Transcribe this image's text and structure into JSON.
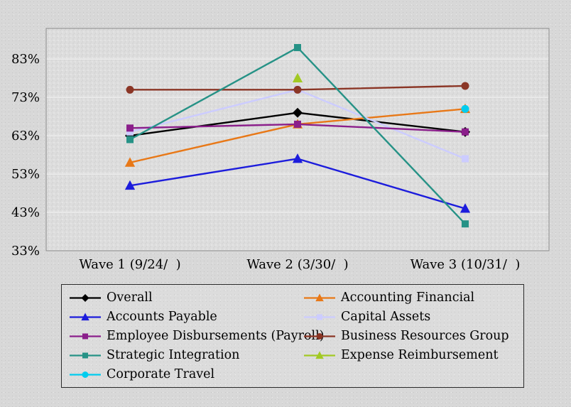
{
  "chart_data": {
    "type": "line",
    "title": "",
    "xlabel": "",
    "ylabel": "",
    "categories": [
      "Wave 1 (9/24/  )",
      "Wave 2 (3/30/  )",
      "Wave 3 (10/31/  )"
    ],
    "yticks": [
      83,
      73,
      63,
      53,
      43,
      33
    ],
    "ytick_labels": [
      "83%",
      "73%",
      "63%",
      "53%",
      "43%",
      "33%"
    ],
    "ylim": [
      33,
      91
    ],
    "grid": "horizontal",
    "legend_position": "bottom",
    "plot_background": "#dddddd",
    "grid_color": "#f4f4f4",
    "series": [
      {
        "name": "Overall",
        "color": "#000000",
        "marker": "diamond",
        "values": [
          63,
          69,
          64
        ]
      },
      {
        "name": "Accounting Financial",
        "color": "#E87817",
        "marker": "triangle",
        "values": [
          56,
          66,
          70
        ]
      },
      {
        "name": "Accounts Payable",
        "color": "#1C1CDC",
        "marker": "triangle",
        "values": [
          50,
          57,
          44
        ]
      },
      {
        "name": "Capital Assets",
        "color": "#CCCCFF",
        "marker": "square",
        "values": [
          64,
          75,
          57
        ]
      },
      {
        "name": "Employee Disbursements (Payroll)",
        "color": "#8B1F8B",
        "marker": "square",
        "values": [
          65,
          66,
          64
        ]
      },
      {
        "name": "Business Resources Group",
        "color": "#8B3626",
        "marker": "circle",
        "values": [
          75,
          75,
          76
        ]
      },
      {
        "name": "Strategic Integration",
        "color": "#269286",
        "marker": "square",
        "values": [
          62,
          86,
          40
        ]
      },
      {
        "name": "Expense Reimbursement",
        "color": "#A2C923",
        "marker": "triangle",
        "values": [
          null,
          78,
          null
        ]
      },
      {
        "name": "Corporate Travel",
        "color": "#00CCEE",
        "marker": "circle",
        "values": [
          null,
          null,
          70
        ]
      }
    ]
  }
}
